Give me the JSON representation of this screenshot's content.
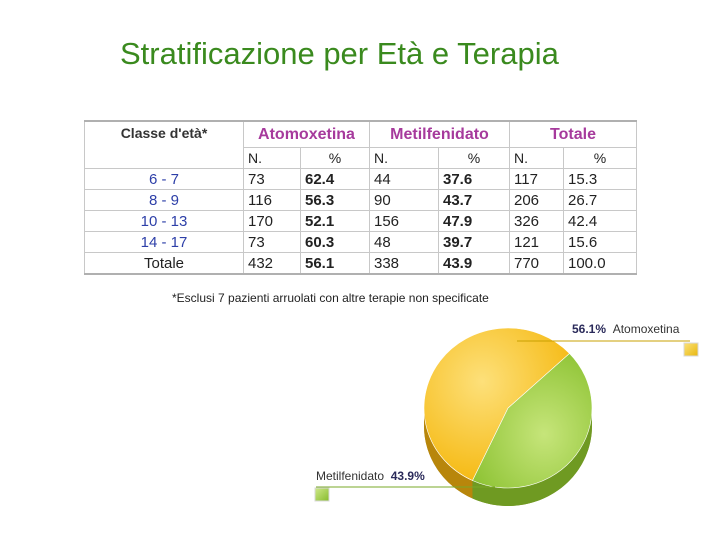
{
  "title": "Stratificazione per Età e Terapia",
  "table": {
    "age_header": "Classe d'età*",
    "groups": [
      "Atomoxetina",
      "Metilfenidato",
      "Totale"
    ],
    "sub_headers": [
      "N.",
      "%",
      "N.",
      "%",
      "N.",
      "%"
    ],
    "rows": [
      {
        "age": "6 - 7",
        "atx_n": "73",
        "atx_pct": "62.4",
        "mph_n": "44",
        "mph_pct": "37.6",
        "tot_n": "117",
        "tot_pct": "15.3"
      },
      {
        "age": "8 - 9",
        "atx_n": "116",
        "atx_pct": "56.3",
        "mph_n": "90",
        "mph_pct": "43.7",
        "tot_n": "206",
        "tot_pct": "26.7"
      },
      {
        "age": "10 - 13",
        "atx_n": "170",
        "atx_pct": "52.1",
        "mph_n": "156",
        "mph_pct": "47.9",
        "tot_n": "326",
        "tot_pct": "42.4"
      },
      {
        "age": "14 - 17",
        "atx_n": "73",
        "atx_pct": "60.3",
        "mph_n": "48",
        "mph_pct": "39.7",
        "tot_n": "121",
        "tot_pct": "15.6"
      },
      {
        "age": "Totale",
        "atx_n": "432",
        "atx_pct": "56.1",
        "mph_n": "338",
        "mph_pct": "43.9",
        "tot_n": "770",
        "tot_pct": "100.0"
      }
    ]
  },
  "footnote": "*Esclusi 7 pazienti arruolati con altre terapie non specificate",
  "chart_data": {
    "type": "pie",
    "slices": [
      {
        "label": "Atomoxetina",
        "value": 56.1,
        "display": "56.1%",
        "color": "#f7c21c"
      },
      {
        "label": "Metilfenidato",
        "value": 43.9,
        "display": "43.9%",
        "color": "#93c83a"
      }
    ]
  },
  "colors": {
    "title": "#3a8a1e",
    "header_purple": "#a63a9c",
    "age_blue": "#2d3fa8",
    "atx": "#f7c21c",
    "mph": "#93c83a"
  }
}
